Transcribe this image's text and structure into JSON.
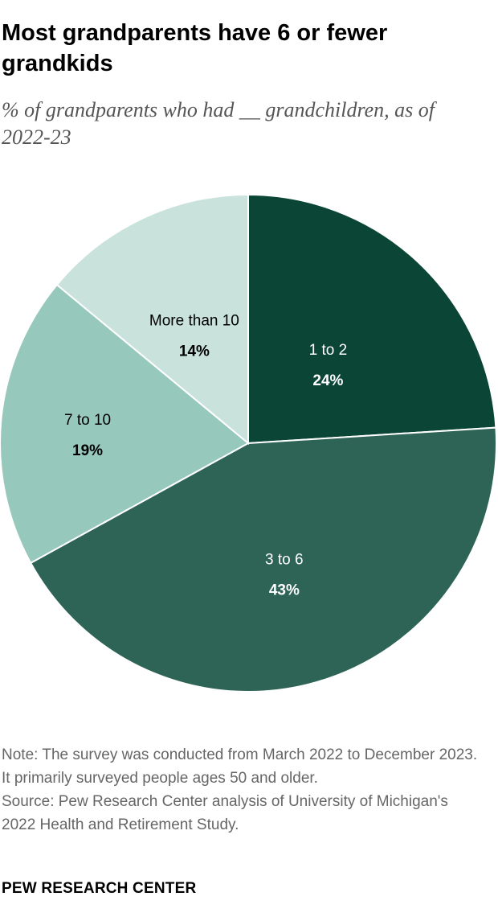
{
  "chart_data": {
    "type": "pie",
    "title": "Most grandparents have 6 or fewer grandkids",
    "subtitle": "% of grandparents who had __ grandchildren, as of 2022-23",
    "categories": [
      "1 to 2",
      "3 to 6",
      "7 to 10",
      "More than 10"
    ],
    "values": [
      24,
      43,
      19,
      14
    ],
    "value_labels": [
      "24%",
      "43%",
      "19%",
      "14%"
    ],
    "colors": [
      "#0b4535",
      "#2e6456",
      "#97c8bc",
      "#c9e3dc"
    ],
    "label_colors": [
      "#ffffff",
      "#ffffff",
      "#000000",
      "#000000"
    ]
  },
  "note": "Note: The survey was conducted from March 2022 to December 2023. It primarily surveyed people ages 50 and older.",
  "source": "Source: Pew Research Center analysis of University of Michigan's 2022 Health and Retirement Study.",
  "brand": "PEW RESEARCH CENTER"
}
